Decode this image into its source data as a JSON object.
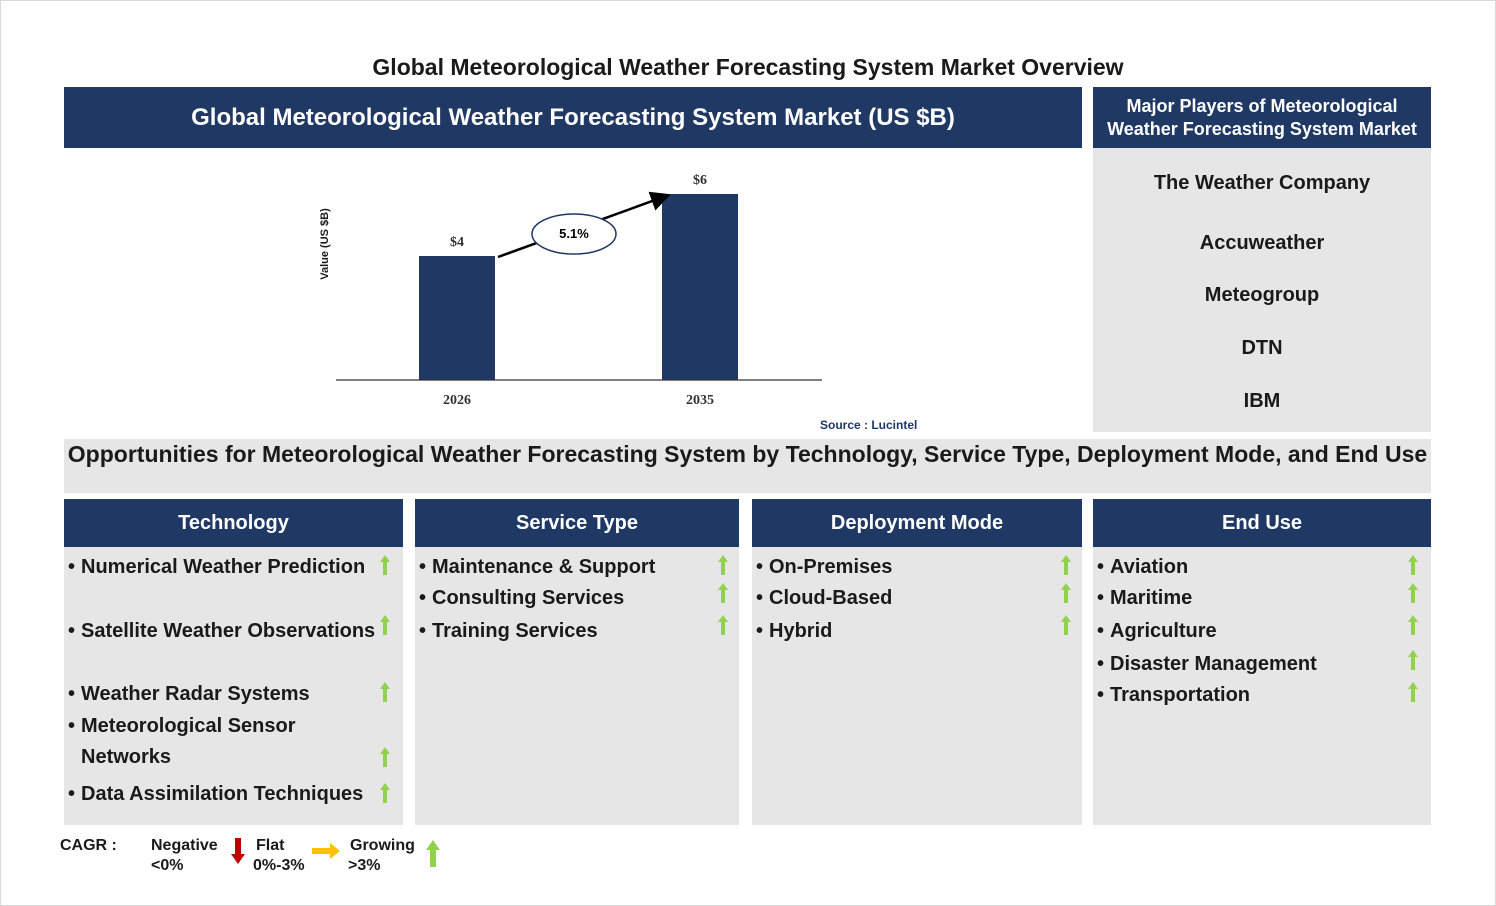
{
  "page": {
    "title": "Global Meteorological Weather Forecasting System Market Overview"
  },
  "chart_panel": {
    "header": "Global Meteorological Weather Forecasting System Market (US $B)",
    "source": "Source : Lucintel"
  },
  "chart_data": {
    "type": "bar",
    "categories": [
      "2026",
      "2035"
    ],
    "values": [
      4,
      6
    ],
    "data_labels": [
      "$4",
      "$6"
    ],
    "ylabel": "Value (US $B)",
    "cagr_label": "5.1%",
    "bar_color": "#1f3864",
    "grid": false
  },
  "players": {
    "header": "Major Players of Meteorological Weather Forecasting System Market",
    "items": [
      "The Weather Company",
      "Accuweather",
      "Meteogroup",
      "DTN",
      "IBM"
    ]
  },
  "opportunities": {
    "title": "Opportunities for Meteorological Weather Forecasting System by Technology, Service Type, Deployment Mode, and End Use",
    "columns": [
      {
        "header": "Technology",
        "items": [
          {
            "text": "Numerical Weather Prediction",
            "trend": "growing"
          },
          {
            "text": "Satellite Weather Observations",
            "trend": "growing"
          },
          {
            "text": "Weather Radar Systems",
            "trend": "growing"
          },
          {
            "text": "Meteorological Sensor Networks",
            "trend": "growing"
          },
          {
            "text": "Data Assimilation Techniques",
            "trend": "growing"
          }
        ]
      },
      {
        "header": "Service Type",
        "items": [
          {
            "text": "Maintenance & Support",
            "trend": "growing"
          },
          {
            "text": "Consulting Services",
            "trend": "growing"
          },
          {
            "text": "Training Services",
            "trend": "growing"
          }
        ]
      },
      {
        "header": "Deployment Mode",
        "items": [
          {
            "text": "On-Premises",
            "trend": "growing"
          },
          {
            "text": "Cloud-Based",
            "trend": "growing"
          },
          {
            "text": "Hybrid",
            "trend": "growing"
          }
        ]
      },
      {
        "header": "End Use",
        "items": [
          {
            "text": "Aviation",
            "trend": "growing"
          },
          {
            "text": "Maritime",
            "trend": "growing"
          },
          {
            "text": "Agriculture",
            "trend": "growing"
          },
          {
            "text": "Disaster Management",
            "trend": "growing"
          },
          {
            "text": "Transportation",
            "trend": "growing"
          }
        ]
      }
    ]
  },
  "legend": {
    "label": "CAGR :",
    "negative": {
      "name": "Negative",
      "range": "<0%",
      "icon": "down-arrow-red-icon",
      "color": "#c00000"
    },
    "flat": {
      "name": "Flat",
      "range": "0%-3%",
      "icon": "right-arrow-yellow-icon",
      "color": "#ffc000"
    },
    "growing": {
      "name": "Growing",
      "range": ">3%",
      "icon": "up-arrow-green-icon",
      "color": "#92d050"
    }
  },
  "colors": {
    "navy": "#1f3864",
    "panel_gray": "#e6e6e6",
    "growth_green": "#92d050"
  }
}
